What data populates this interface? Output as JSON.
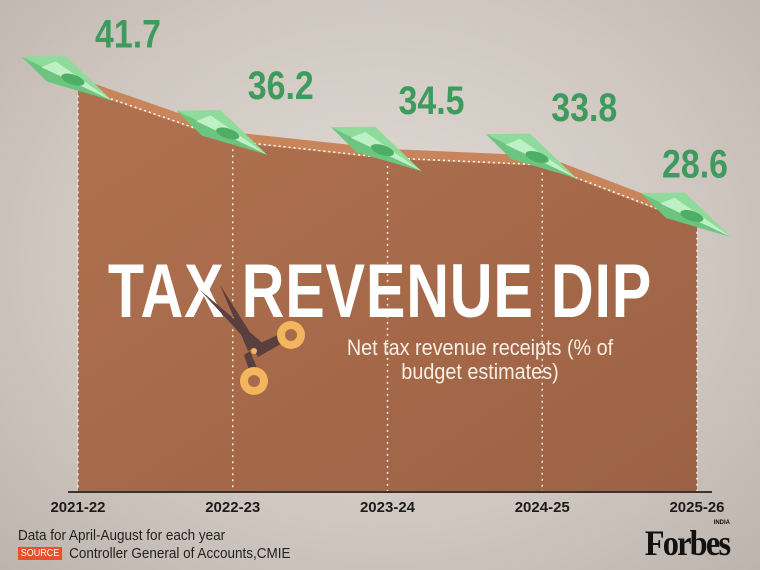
{
  "chart_data": {
    "type": "area",
    "title": "TAX REVENUE DIP",
    "subtitle": "Net tax revenue receipts (% of budget estimates)",
    "categories": [
      "2021-22",
      "2022-23",
      "2023-24",
      "2024-25",
      "2025-26"
    ],
    "values": [
      41.7,
      36.2,
      34.5,
      33.8,
      28.6
    ],
    "value_labels": [
      "41.7",
      "36.2",
      "34.5",
      "33.8",
      "28.6"
    ],
    "xlabel": "",
    "ylabel": "",
    "grid": false,
    "colors": {
      "area": "#a96b4b",
      "area_edge": "#c8855c",
      "labels": "#3f9a5e",
      "markers": "#7fd08f"
    },
    "marker_icon": "money-paper-plane-icon"
  },
  "footer": {
    "note": "Data for April-August for each year",
    "source_badge": "SOURCE",
    "source": "Controller General of Accounts,CMIE",
    "logo": "Forbes",
    "logo_sub": "INDIA"
  },
  "decor_icon": "scissors-icon"
}
